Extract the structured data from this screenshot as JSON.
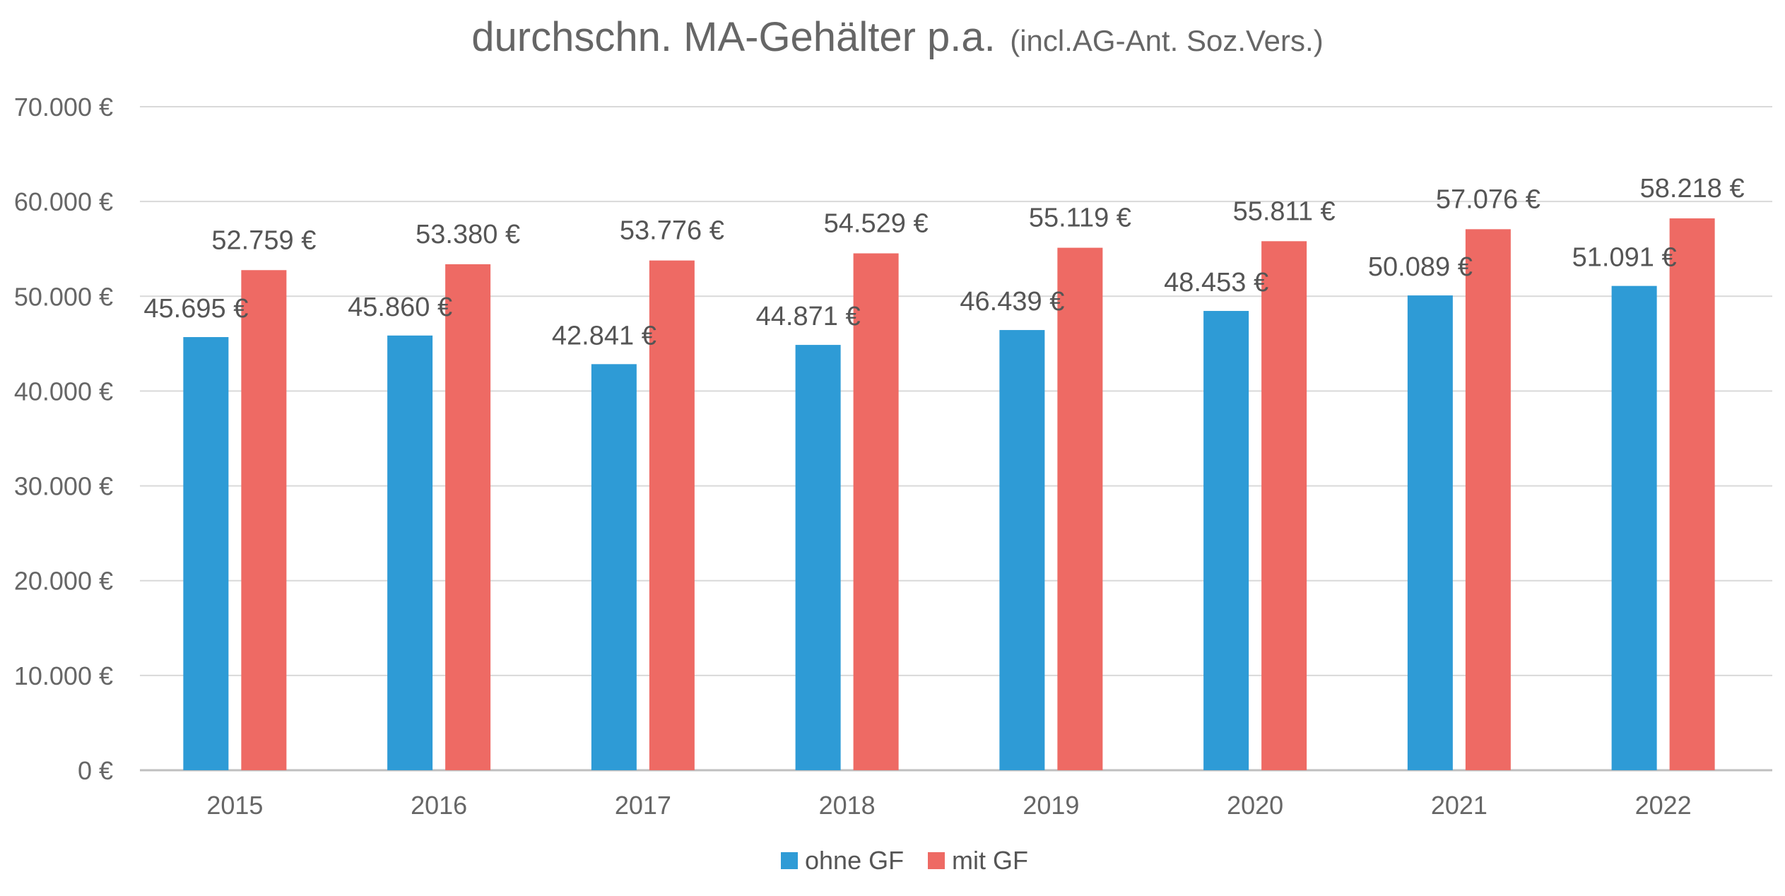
{
  "chart_data": {
    "type": "bar",
    "title": "durchschn. MA-Gehälter p.a.",
    "subtitle": "(incl.AG-Ant. Soz.Vers.)",
    "xlabel": "",
    "ylabel": "",
    "ylim": [
      0,
      70000
    ],
    "y_ticks": [
      0,
      10000,
      20000,
      30000,
      40000,
      50000,
      60000,
      70000
    ],
    "y_tick_labels": [
      "0 €",
      "10.000 €",
      "20.000 €",
      "30.000 €",
      "40.000 €",
      "50.000 €",
      "60.000 €",
      "70.000 €"
    ],
    "grid": true,
    "legend_position": "bottom-center",
    "categories": [
      "2015",
      "2016",
      "2017",
      "2018",
      "2019",
      "2020",
      "2021",
      "2022"
    ],
    "series": [
      {
        "name": "ohne GF",
        "color": "#2E9BD6",
        "values": [
          45695,
          45860,
          42841,
          44871,
          46439,
          48453,
          50089,
          51091
        ],
        "labels": [
          "45.695 €",
          "45.860 €",
          "42.841 €",
          "44.871 €",
          "46.439 €",
          "48.453 €",
          "50.089 €",
          "51.091 €"
        ]
      },
      {
        "name": "mit GF",
        "color": "#EE6A64",
        "values": [
          52759,
          53380,
          53776,
          54529,
          55119,
          55811,
          57076,
          58218
        ],
        "labels": [
          "52.759 €",
          "53.380 €",
          "53.776 €",
          "54.529 €",
          "55.119 €",
          "55.811 €",
          "57.076 €",
          "58.218 €"
        ]
      }
    ]
  },
  "colors": {
    "grid": "#D9D9D9",
    "axis": "#BFBFBF",
    "text": "#666666"
  }
}
